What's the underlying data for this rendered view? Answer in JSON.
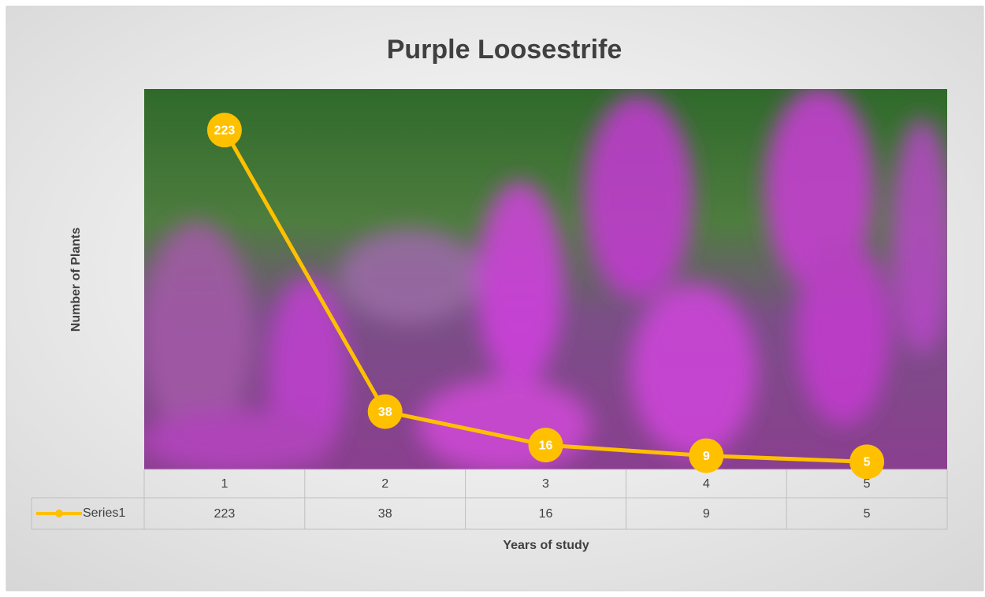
{
  "chart_data": {
    "type": "line",
    "title": "Purple Loosestrife",
    "x_label": "Years of study",
    "y_label": "Number of Plants",
    "categories": [
      "1",
      "2",
      "3",
      "4",
      "5"
    ],
    "series": [
      {
        "name": "Series1",
        "color": "#ffc000",
        "values": [
          223,
          38,
          16,
          9,
          5
        ]
      }
    ],
    "ylim": [
      0,
      250
    ],
    "data_labels": true,
    "data_table": true
  }
}
